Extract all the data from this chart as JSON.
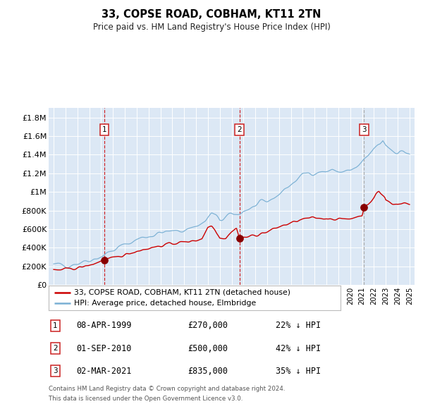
{
  "title": "33, COPSE ROAD, COBHAM, KT11 2TN",
  "subtitle": "Price paid vs. HM Land Registry's House Price Index (HPI)",
  "legend_line1": "33, COPSE ROAD, COBHAM, KT11 2TN (detached house)",
  "legend_line2": "HPI: Average price, detached house, Elmbridge",
  "footer1": "Contains HM Land Registry data © Crown copyright and database right 2024.",
  "footer2": "This data is licensed under the Open Government Licence v3.0.",
  "transactions": [
    {
      "num": 1,
      "date": "08-APR-1999",
      "price": 270000,
      "pct": "22%",
      "dir": "↓"
    },
    {
      "num": 2,
      "date": "01-SEP-2010",
      "price": 500000,
      "pct": "42%",
      "dir": "↓"
    },
    {
      "num": 3,
      "date": "02-MAR-2021",
      "price": 835000,
      "pct": "35%",
      "dir": "↓"
    }
  ],
  "transaction_dates_dec": [
    1999.274,
    2010.664,
    2021.162
  ],
  "transaction_prices": [
    270000,
    500000,
    835000
  ],
  "vline_dates_red": [
    1999.274,
    2010.664
  ],
  "vline_dates_grey": [
    2021.162
  ],
  "ylim": [
    0,
    1900000
  ],
  "yticks": [
    0,
    200000,
    400000,
    600000,
    800000,
    1000000,
    1200000,
    1400000,
    1600000,
    1800000
  ],
  "ytick_labels": [
    "£0",
    "£200K",
    "£400K",
    "£600K",
    "£800K",
    "£1M",
    "£1.2M",
    "£1.4M",
    "£1.6M",
    "£1.8M"
  ],
  "xlim_start": 1994.58,
  "xlim_end": 2025.42,
  "background_color": "#dce8f5",
  "grid_color": "#ffffff",
  "red_line_color": "#cc0000",
  "blue_line_color": "#7ab0d4",
  "vline_red_color": "#cc0000",
  "vline_grey_color": "#aaaaaa",
  "marker_color": "#880000",
  "box_edge_color": "#cc2222",
  "hpi_anchors": [
    [
      1995.0,
      205000
    ],
    [
      1996.0,
      220000
    ],
    [
      1997.0,
      240000
    ],
    [
      1998.0,
      275000
    ],
    [
      1999.0,
      310000
    ],
    [
      2000.0,
      370000
    ],
    [
      2001.0,
      430000
    ],
    [
      2002.0,
      490000
    ],
    [
      2003.0,
      530000
    ],
    [
      2004.0,
      560000
    ],
    [
      2005.0,
      570000
    ],
    [
      2006.0,
      595000
    ],
    [
      2007.0,
      635000
    ],
    [
      2007.8,
      680000
    ],
    [
      2008.3,
      770000
    ],
    [
      2008.7,
      730000
    ],
    [
      2009.0,
      690000
    ],
    [
      2009.5,
      720000
    ],
    [
      2010.0,
      750000
    ],
    [
      2010.5,
      760000
    ],
    [
      2011.0,
      800000
    ],
    [
      2011.5,
      820000
    ],
    [
      2012.0,
      840000
    ],
    [
      2013.0,
      890000
    ],
    [
      2014.0,
      980000
    ],
    [
      2015.0,
      1080000
    ],
    [
      2016.0,
      1180000
    ],
    [
      2016.5,
      1210000
    ],
    [
      2017.0,
      1220000
    ],
    [
      2017.5,
      1215000
    ],
    [
      2018.0,
      1220000
    ],
    [
      2018.5,
      1230000
    ],
    [
      2019.0,
      1220000
    ],
    [
      2019.5,
      1215000
    ],
    [
      2020.0,
      1225000
    ],
    [
      2020.5,
      1250000
    ],
    [
      2021.0,
      1300000
    ],
    [
      2021.5,
      1380000
    ],
    [
      2022.0,
      1460000
    ],
    [
      2022.5,
      1510000
    ],
    [
      2022.75,
      1555000
    ],
    [
      2023.0,
      1510000
    ],
    [
      2023.5,
      1460000
    ],
    [
      2024.0,
      1430000
    ],
    [
      2024.5,
      1435000
    ],
    [
      2025.0,
      1410000
    ]
  ],
  "red_anchors": [
    [
      1995.0,
      155000
    ],
    [
      1996.0,
      168000
    ],
    [
      1997.0,
      182000
    ],
    [
      1998.0,
      210000
    ],
    [
      1999.274,
      270000
    ],
    [
      2000.0,
      285000
    ],
    [
      2001.0,
      325000
    ],
    [
      2002.0,
      365000
    ],
    [
      2003.0,
      395000
    ],
    [
      2004.0,
      420000
    ],
    [
      2004.5,
      435000
    ],
    [
      2005.0,
      445000
    ],
    [
      2005.5,
      455000
    ],
    [
      2006.0,
      460000
    ],
    [
      2006.5,
      470000
    ],
    [
      2007.0,
      480000
    ],
    [
      2007.5,
      500000
    ],
    [
      2008.0,
      620000
    ],
    [
      2008.3,
      640000
    ],
    [
      2008.6,
      600000
    ],
    [
      2009.0,
      510000
    ],
    [
      2009.5,
      505000
    ],
    [
      2010.0,
      570000
    ],
    [
      2010.4,
      620000
    ],
    [
      2010.664,
      500000
    ],
    [
      2011.0,
      510000
    ],
    [
      2011.5,
      520000
    ],
    [
      2012.0,
      535000
    ],
    [
      2013.0,
      570000
    ],
    [
      2014.0,
      625000
    ],
    [
      2015.0,
      665000
    ],
    [
      2016.0,
      705000
    ],
    [
      2016.5,
      715000
    ],
    [
      2017.0,
      720000
    ],
    [
      2017.5,
      715000
    ],
    [
      2018.0,
      718000
    ],
    [
      2018.5,
      712000
    ],
    [
      2019.0,
      708000
    ],
    [
      2019.5,
      705000
    ],
    [
      2020.0,
      715000
    ],
    [
      2020.5,
      730000
    ],
    [
      2021.0,
      755000
    ],
    [
      2021.162,
      835000
    ],
    [
      2021.5,
      855000
    ],
    [
      2022.0,
      940000
    ],
    [
      2022.2,
      985000
    ],
    [
      2022.4,
      1005000
    ],
    [
      2022.6,
      975000
    ],
    [
      2022.9,
      945000
    ],
    [
      2023.0,
      915000
    ],
    [
      2023.3,
      895000
    ],
    [
      2023.6,
      875000
    ],
    [
      2024.0,
      865000
    ],
    [
      2024.3,
      870000
    ],
    [
      2024.6,
      880000
    ],
    [
      2025.0,
      875000
    ]
  ]
}
